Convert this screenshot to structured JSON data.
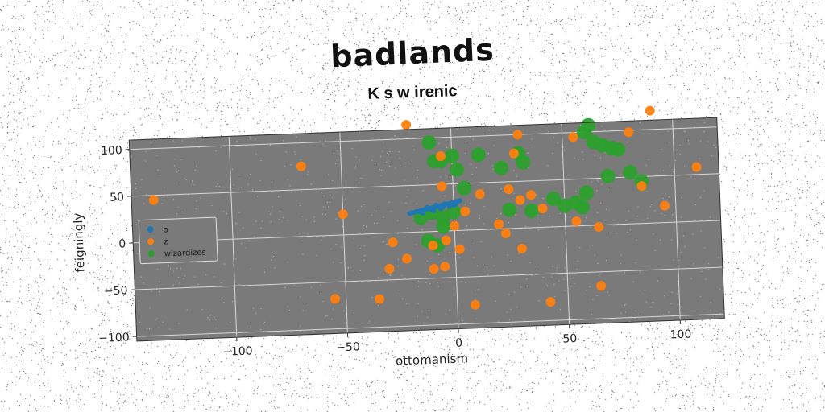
{
  "chart_data": {
    "type": "scatter",
    "title": "badlands",
    "subtitle": "K s w irenic",
    "xlabel": "ottomanism",
    "ylabel": "feigningly",
    "xlim": [
      -145,
      120
    ],
    "ylim": [
      -105,
      110
    ],
    "xticks": [
      -100,
      -50,
      0,
      50,
      100
    ],
    "yticks": [
      -100,
      -50,
      0,
      50,
      100
    ],
    "tick_labels": {
      "x": [
        "−100",
        "−50",
        "0",
        "50",
        "100"
      ],
      "y": [
        "−100",
        "−50",
        "0",
        "50",
        "100"
      ]
    },
    "grid": true,
    "legend_position": "center-left",
    "series": [
      {
        "name": "o",
        "color": "#1f77b4",
        "size": 3,
        "points": [
          [
            -20,
            20
          ],
          [
            -19,
            21
          ],
          [
            -18,
            21
          ],
          [
            -17,
            22
          ],
          [
            -16,
            22
          ],
          [
            -15,
            23
          ],
          [
            -14,
            23
          ],
          [
            -13,
            24
          ],
          [
            -12,
            24
          ],
          [
            -11,
            25
          ],
          [
            -10,
            25
          ],
          [
            -9,
            26
          ],
          [
            -8,
            26
          ],
          [
            -7,
            27
          ],
          [
            -6,
            27
          ],
          [
            -5,
            28
          ],
          [
            -4,
            28
          ],
          [
            -3,
            29
          ],
          [
            -2,
            29
          ],
          [
            -1,
            30
          ],
          [
            0,
            30
          ],
          [
            1,
            31
          ],
          [
            2,
            31
          ],
          [
            3,
            32
          ],
          [
            -15,
            21
          ],
          [
            -10,
            23
          ],
          [
            -5,
            25
          ],
          [
            0,
            27
          ],
          [
            -12,
            26
          ],
          [
            -8,
            28
          ],
          [
            -4,
            29
          ],
          [
            -14,
            20
          ],
          [
            -9,
            22
          ],
          [
            -6,
            24
          ],
          [
            -2,
            26
          ],
          [
            1,
            28
          ]
        ]
      },
      {
        "name": "z",
        "color": "#ff7f0e",
        "size": 6,
        "points": [
          [
            -135,
            45
          ],
          [
            -68,
            75
          ],
          [
            -50,
            22
          ],
          [
            -55,
            -68
          ],
          [
            -35,
            -70
          ],
          [
            -28,
            -10
          ],
          [
            -30,
            -38
          ],
          [
            -22,
            -28
          ],
          [
            -20,
            115
          ],
          [
            -10,
            -15
          ],
          [
            -10,
            -40
          ],
          [
            -5,
            -38
          ],
          [
            -4,
            -10
          ],
          [
            -5,
            48
          ],
          [
            -5,
            80
          ],
          [
            0,
            5
          ],
          [
            2,
            -20
          ],
          [
            5,
            20
          ],
          [
            8,
            -80
          ],
          [
            12,
            38
          ],
          [
            20,
            5
          ],
          [
            23,
            -5
          ],
          [
            25,
            42
          ],
          [
            28,
            80
          ],
          [
            30,
            -22
          ],
          [
            30,
            100
          ],
          [
            30,
            30
          ],
          [
            35,
            35
          ],
          [
            40,
            20
          ],
          [
            42,
            -80
          ],
          [
            55,
            95
          ],
          [
            55,
            5
          ],
          [
            65,
            -65
          ],
          [
            65,
            -2
          ],
          [
            80,
            98
          ],
          [
            85,
            40
          ],
          [
            90,
            120
          ],
          [
            95,
            18
          ],
          [
            110,
            58
          ]
        ]
      },
      {
        "name": "wizardizes",
        "color": "#2ca02c",
        "size": 9,
        "points": [
          [
            -10,
            20
          ],
          [
            -5,
            15
          ],
          [
            0,
            20
          ],
          [
            5,
            45
          ],
          [
            0,
            80
          ],
          [
            -5,
            75
          ],
          [
            -10,
            95
          ],
          [
            -8,
            75
          ],
          [
            2,
            65
          ],
          [
            12,
            80
          ],
          [
            22,
            65
          ],
          [
            30,
            80
          ],
          [
            32,
            70
          ],
          [
            25,
            20
          ],
          [
            35,
            18
          ],
          [
            45,
            30
          ],
          [
            50,
            22
          ],
          [
            55,
            25
          ],
          [
            58,
            20
          ],
          [
            60,
            35
          ],
          [
            60,
            100
          ],
          [
            62,
            107
          ],
          [
            64,
            89
          ],
          [
            68,
            85
          ],
          [
            72,
            82
          ],
          [
            75,
            80
          ],
          [
            70,
            52
          ],
          [
            80,
            55
          ],
          [
            85,
            45
          ],
          [
            -12,
            -10
          ],
          [
            -8,
            -15
          ],
          [
            -15,
            15
          ],
          [
            -5,
            5
          ]
        ]
      }
    ]
  }
}
